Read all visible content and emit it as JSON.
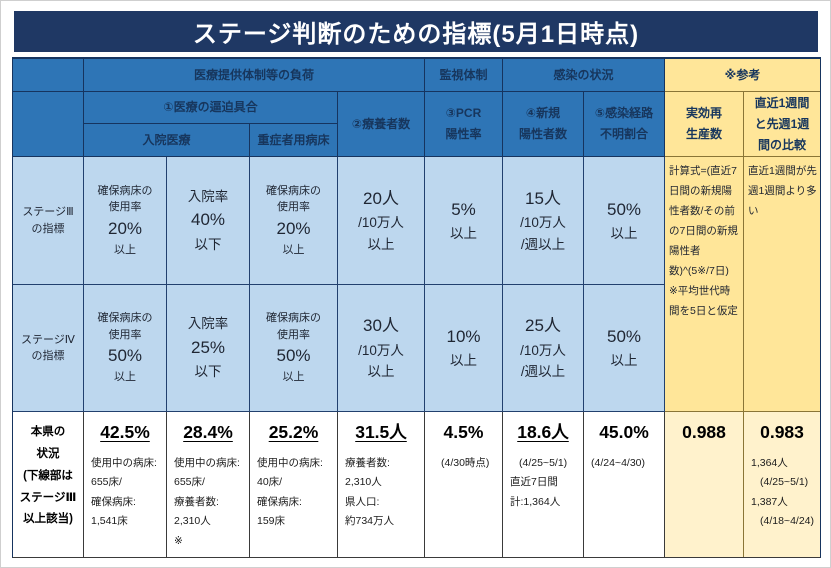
{
  "title": {
    "text": "ステージ判断のための指標(5月1日時点)"
  },
  "colors": {
    "title_bg": "#1f3864",
    "header_blue": "#2e75b6",
    "light_blue": "#bdd7ee",
    "reference_yellow": "#ffe699",
    "reference_light_yellow": "#fff2cc",
    "white_row": "#ffffff"
  },
  "table": {
    "header": {
      "load": [
        {
          "t": "医療提供体制等の負荷"
        }
      ],
      "monitoring": [
        {
          "t": "監視体制"
        }
      ],
      "infection": [
        {
          "t": "感染の状況"
        }
      ],
      "reference": [
        {
          "t": "※参考"
        }
      ],
      "tightness": [
        {
          "t": "①医療の逼迫具合"
        }
      ],
      "patients": [
        {
          "t": "②療養者数"
        }
      ],
      "pcr": [
        {
          "t": "③PCR"
        },
        {
          "t": "陽性率"
        }
      ],
      "new_cases": [
        {
          "t": "④新規"
        },
        {
          "t": "陽性者数"
        }
      ],
      "unknown_route": [
        {
          "t": "⑤感染経路"
        },
        {
          "t": "不明割合"
        }
      ],
      "rt": [
        {
          "t": "実効再"
        },
        {
          "t": "生産数"
        }
      ],
      "week_compare": [
        {
          "t": "直近1週間"
        },
        {
          "t": "と先週1週"
        },
        {
          "t": "間の比較"
        }
      ],
      "inpatient": [
        {
          "t": "入院医療"
        }
      ],
      "severe_beds": [
        {
          "t": "重症者用病床"
        }
      ]
    },
    "stage3": {
      "label": [
        {
          "t": "ステージⅢ",
          "k": "S"
        },
        {
          "t": "の指標",
          "k": "S"
        }
      ],
      "bed_usage": [
        {
          "t": "確保病床の",
          "k": "S"
        },
        {
          "t": "使用率",
          "k": "S"
        },
        {
          "t": "20%",
          "k": "L"
        },
        {
          "t": "以上",
          "k": "S"
        }
      ],
      "hosp_rate": [
        {
          "t": "入院率",
          "k": "M"
        },
        {
          "t": "40%",
          "k": "L"
        },
        {
          "t": "以下",
          "k": "M"
        }
      ],
      "severe_usage": [
        {
          "t": "確保病床の",
          "k": "S"
        },
        {
          "t": "使用率",
          "k": "S"
        },
        {
          "t": "20%",
          "k": "L"
        },
        {
          "t": "以上",
          "k": "S"
        }
      ],
      "patients": [
        {
          "t": "20人",
          "k": "L"
        },
        {
          "t": "/10万人",
          "k": "M"
        },
        {
          "t": "以上",
          "k": "M"
        }
      ],
      "pcr": [
        {
          "t": "5%",
          "k": "L"
        },
        {
          "t": "以上",
          "k": "M"
        }
      ],
      "new_cases": [
        {
          "t": "15人",
          "k": "L"
        },
        {
          "t": "/10万人",
          "k": "M"
        },
        {
          "t": "/週以上",
          "k": "M"
        }
      ],
      "unknown": [
        {
          "t": "50%",
          "k": "L"
        },
        {
          "t": "以上",
          "k": "M"
        }
      ]
    },
    "stage4": {
      "label": [
        {
          "t": "ステージⅣ",
          "k": "S"
        },
        {
          "t": "の指標",
          "k": "S"
        }
      ],
      "bed_usage": [
        {
          "t": "確保病床の",
          "k": "S"
        },
        {
          "t": "使用率",
          "k": "S"
        },
        {
          "t": "50%",
          "k": "L"
        },
        {
          "t": "以上",
          "k": "S"
        }
      ],
      "hosp_rate": [
        {
          "t": "入院率",
          "k": "M"
        },
        {
          "t": "25%",
          "k": "L"
        },
        {
          "t": "以下",
          "k": "M"
        }
      ],
      "severe_usage": [
        {
          "t": "確保病床の",
          "k": "S"
        },
        {
          "t": "使用率",
          "k": "S"
        },
        {
          "t": "50%",
          "k": "L"
        },
        {
          "t": "以上",
          "k": "S"
        }
      ],
      "patients": [
        {
          "t": "30人",
          "k": "L"
        },
        {
          "t": "/10万人",
          "k": "M"
        },
        {
          "t": "以上",
          "k": "M"
        }
      ],
      "pcr": [
        {
          "t": "10%",
          "k": "L"
        },
        {
          "t": "以上",
          "k": "M"
        }
      ],
      "new_cases": [
        {
          "t": "25人",
          "k": "L"
        },
        {
          "t": "/10万人",
          "k": "M"
        },
        {
          "t": "/週以上",
          "k": "M"
        }
      ],
      "unknown": [
        {
          "t": "50%",
          "k": "L"
        },
        {
          "t": "以上",
          "k": "M"
        }
      ]
    },
    "reference_notes": {
      "formula": [
        {
          "t": "計算式=(直近7日間の新規陽性者数/その前の7日間の新規陽性者数)^(5※/7日)",
          "k": "n0"
        },
        {
          "t": "※平均世代時間を5日と仮定",
          "k": "n0"
        }
      ],
      "comparison": [
        {
          "t": "直近1週間が先週1週間より多い",
          "k": "n0"
        }
      ]
    },
    "pref": {
      "label": [
        {
          "t": "本県の",
          "k": "b"
        },
        {
          "t": "状況",
          "k": "b"
        },
        {
          "t": "(下線部は",
          "k": "b"
        },
        {
          "t": "ステージⅢ",
          "k": "b"
        },
        {
          "t": "以上該当)",
          "k": "b"
        }
      ],
      "bed_usage": [
        {
          "t": "42.5%",
          "k": "vu"
        },
        {
          "t": "使用中の病床:",
          "k": "n"
        },
        {
          "t": "655床/",
          "k": "n"
        },
        {
          "t": "確保病床:",
          "k": "n"
        },
        {
          "t": "1,541床",
          "k": "n"
        }
      ],
      "hosp_rate": [
        {
          "t": "28.4%",
          "k": "vu"
        },
        {
          "t": "使用中の病床:",
          "k": "n"
        },
        {
          "t": "655床/",
          "k": "n"
        },
        {
          "t": "療養者数:",
          "k": "n"
        },
        {
          "t": "2,310人",
          "k": "n"
        },
        {
          "t": "※",
          "k": "n"
        }
      ],
      "severe_usage": [
        {
          "t": "25.2%",
          "k": "vu"
        },
        {
          "t": "使用中の病床:",
          "k": "n"
        },
        {
          "t": "40床/",
          "k": "n"
        },
        {
          "t": "確保病床:",
          "k": "n"
        },
        {
          "t": "159床",
          "k": "n"
        }
      ],
      "patients": [
        {
          "t": "31.5人",
          "k": "vu"
        },
        {
          "t": "療養者数:",
          "k": "n"
        },
        {
          "t": "2,310人",
          "k": "n"
        },
        {
          "t": "県人口:",
          "k": "n"
        },
        {
          "t": "約734万人",
          "k": "n"
        }
      ],
      "pcr": [
        {
          "t": "4.5%",
          "k": "v"
        },
        {
          "t": "(4/30時点)",
          "k": "ni"
        }
      ],
      "new_cases": [
        {
          "t": "18.6人",
          "k": "vu"
        },
        {
          "t": "(4/25~5/1)",
          "k": "ni"
        },
        {
          "t": "直近7日間",
          "k": "n"
        },
        {
          "t": "計:1,364人",
          "k": "n"
        }
      ],
      "unknown": [
        {
          "t": "45.0%",
          "k": "v"
        },
        {
          "t": "(4/24~4/30)",
          "k": "n"
        }
      ],
      "rt": [
        {
          "t": "0.988",
          "k": "v"
        }
      ],
      "comparison": [
        {
          "t": "0.983",
          "k": "v"
        },
        {
          "t": "1,364人",
          "k": "n"
        },
        {
          "t": "(4/25~5/1)",
          "k": "ni"
        },
        {
          "t": "1,387人",
          "k": "n"
        },
        {
          "t": "(4/18~4/24)",
          "k": "ni"
        }
      ]
    }
  },
  "chart_data": {
    "type": "table",
    "title": "ステージ判断のための指標(5月1日時点)",
    "column_groups": [
      "医療提供体制等の負荷",
      "監視体制",
      "感染の状況",
      "※参考"
    ],
    "columns": [
      "①医療の逼迫具合:入院医療:確保病床の使用率",
      "①医療の逼迫具合:入院医療:入院率",
      "①医療の逼迫具合:重症者用病床:確保病床の使用率",
      "②療養者数",
      "③PCR陽性率",
      "④新規陽性者数",
      "⑤感染経路不明割合",
      "実効再生産数",
      "直近1週間と先週1週間の比較"
    ],
    "rows": [
      {
        "label": "ステージⅢの指標",
        "values": [
          "確保病床の使用率20%以上",
          "入院率40%以下",
          "確保病床の使用率20%以上",
          "20人/10万人以上",
          "5%以上",
          "15人/10万人/週以上",
          "50%以上",
          "計算式=(直近7日間の新規陽性者数/その前の7日間の新規陽性者数)^(5※/7日) ※平均世代時間を5日と仮定",
          "直近1週間が先週1週間より多い"
        ]
      },
      {
        "label": "ステージⅣの指標",
        "values": [
          "確保病床の使用率50%以上",
          "入院率25%以下",
          "確保病床の使用率50%以上",
          "30人/10万人以上",
          "10%以上",
          "25人/10万人/週以上",
          "50%以上",
          "",
          ""
        ]
      },
      {
        "label": "本県の状況(下線部はステージⅢ以上該当)",
        "values": [
          "42.5% 使用中の病床:655床/確保病床:1,541床",
          "28.4% 使用中の病床:655床/療養者数:2,310人 ※",
          "25.2% 使用中の病床:40床/確保病床:159床",
          "31.5人 療養者数:2,310人 県人口:約734万人",
          "4.5% (4/30時点)",
          "18.6人 (4/25~5/1) 直近7日間計:1,364人",
          "45.0% (4/24~4/30)",
          "0.988",
          "0.983 1,364人(4/25~5/1) 1,387人(4/18~4/24)"
        ]
      }
    ],
    "underlined_values_meaning": "下線部はステージⅢ以上該当",
    "underlined_values": [
      "42.5%",
      "28.4%",
      "25.2%",
      "31.5人",
      "18.6人"
    ]
  }
}
